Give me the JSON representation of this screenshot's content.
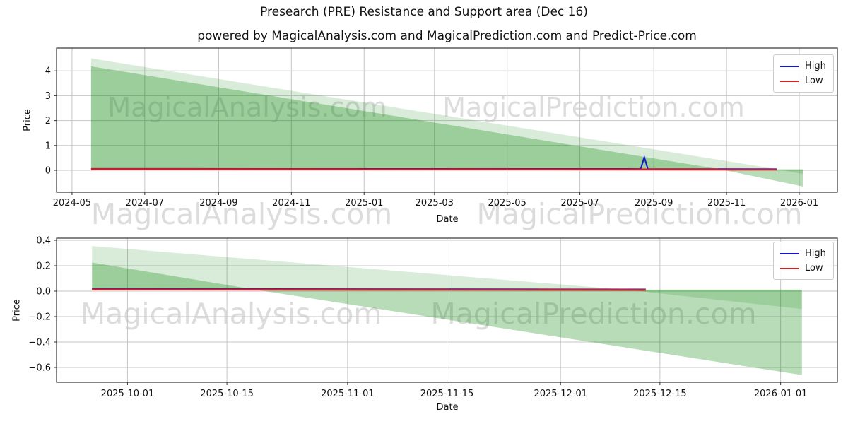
{
  "title": "Presearch (PRE) Resistance and Support area (Dec 16)",
  "subtitle": "powered by MagicalAnalysis.com and MagicalPrediction.com and Predict-Price.com",
  "watermarks": {
    "analysis": "MagicalAnalysis.com",
    "prediction": "MagicalPrediction.com"
  },
  "colors": {
    "band_green": "#008000",
    "high_line": "#1414cc",
    "low_line": "#cc2222",
    "grid": "#c6c6c6",
    "spine": "#333333",
    "text": "#111111"
  },
  "chart_data": [
    {
      "type": "area",
      "name": "full-history",
      "xlabel": "Date",
      "ylabel": "Price",
      "legend": [
        "High",
        "Low"
      ],
      "grid": true,
      "legend_position": "upper right",
      "x_range": [
        "2024-04-18",
        "2026-02-02"
      ],
      "y_range": [
        -0.8807,
        4.915
      ],
      "x_ticks": [
        {
          "date": "2024-05-01",
          "label": "2024-05"
        },
        {
          "date": "2024-07-01",
          "label": "2024-07"
        },
        {
          "date": "2024-09-01",
          "label": "2024-09"
        },
        {
          "date": "2024-11-01",
          "label": "2024-11"
        },
        {
          "date": "2025-01-01",
          "label": "2025-01"
        },
        {
          "date": "2025-03-01",
          "label": "2025-03"
        },
        {
          "date": "2025-05-01",
          "label": "2025-05"
        },
        {
          "date": "2025-07-01",
          "label": "2025-07"
        },
        {
          "date": "2025-09-01",
          "label": "2025-09"
        },
        {
          "date": "2025-11-01",
          "label": "2025-11"
        },
        {
          "date": "2026-01-01",
          "label": "2026-01"
        }
      ],
      "y_ticks": [
        {
          "v": 0,
          "label": "0"
        },
        {
          "v": 1,
          "label": "1"
        },
        {
          "v": 2,
          "label": "2"
        },
        {
          "v": 3,
          "label": "3"
        },
        {
          "v": 4,
          "label": "4"
        }
      ],
      "bands": [
        {
          "name": "resistance-area",
          "opacity": 0.15,
          "base": 0.04,
          "top": [
            [
              "2024-05-17",
              4.5
            ],
            [
              "2025-12-14",
              0.04
            ],
            [
              "2026-01-04",
              -0.15
            ]
          ]
        },
        {
          "name": "support-area",
          "opacity": 0.28,
          "base": 0.04,
          "top": [
            [
              "2024-05-17",
              4.18
            ],
            [
              "2025-10-27",
              0.04
            ],
            [
              "2026-01-04",
              -0.65
            ]
          ]
        }
      ],
      "series": [
        {
          "name": "High",
          "color_key": "high_line",
          "width": 2,
          "points": [
            [
              "2024-05-17",
              0.06
            ],
            [
              "2025-08-21",
              0.055
            ],
            [
              "2025-08-24",
              0.53
            ],
            [
              "2025-08-27",
              0.055
            ],
            [
              "2025-12-13",
              0.045
            ]
          ]
        },
        {
          "name": "Low",
          "color_key": "low_line",
          "width": 2.6,
          "points": [
            [
              "2024-05-17",
              0.045
            ],
            [
              "2025-12-13",
              0.03
            ]
          ]
        }
      ]
    },
    {
      "type": "area",
      "name": "recent-zoom",
      "xlabel": "Date",
      "ylabel": "Price",
      "legend": [
        "High",
        "Low"
      ],
      "grid": true,
      "legend_position": "upper right",
      "x_range": [
        "2025-09-21",
        "2026-01-09"
      ],
      "y_range": [
        -0.7167,
        0.4167
      ],
      "x_ticks": [
        {
          "date": "2025-10-01",
          "label": "2025-10-01"
        },
        {
          "date": "2025-10-15",
          "label": "2025-10-15"
        },
        {
          "date": "2025-11-01",
          "label": "2025-11-01"
        },
        {
          "date": "2025-11-15",
          "label": "2025-11-15"
        },
        {
          "date": "2025-12-01",
          "label": "2025-12-01"
        },
        {
          "date": "2025-12-15",
          "label": "2025-12-15"
        },
        {
          "date": "2026-01-01",
          "label": "2026-01-01"
        }
      ],
      "y_ticks": [
        {
          "v": 0.4,
          "label": "0.4"
        },
        {
          "v": 0.2,
          "label": "0.2"
        },
        {
          "v": 0.0,
          "label": "0.0"
        },
        {
          "v": -0.2,
          "label": "−0.2"
        },
        {
          "v": -0.4,
          "label": "−0.4"
        },
        {
          "v": -0.6,
          "label": "−0.6"
        }
      ],
      "bands": [
        {
          "name": "resistance-area",
          "opacity": 0.15,
          "base": 0.012,
          "top": [
            [
              "2025-09-26",
              0.355
            ],
            [
              "2025-12-10",
              0.012
            ],
            [
              "2026-01-04",
              -0.14
            ]
          ]
        },
        {
          "name": "support-area",
          "opacity": 0.28,
          "base": 0.012,
          "top": [
            [
              "2025-09-26",
              0.225
            ],
            [
              "2025-10-19",
              0.012
            ],
            [
              "2026-01-04",
              -0.66
            ]
          ]
        }
      ],
      "series": [
        {
          "name": "High",
          "color_key": "high_line",
          "width": 2,
          "points": [
            [
              "2025-09-26",
              0.018
            ],
            [
              "2025-12-13",
              0.014
            ]
          ]
        },
        {
          "name": "Low",
          "color_key": "low_line",
          "width": 2.6,
          "points": [
            [
              "2025-09-26",
              0.013
            ],
            [
              "2025-12-13",
              0.01
            ]
          ]
        }
      ]
    }
  ]
}
